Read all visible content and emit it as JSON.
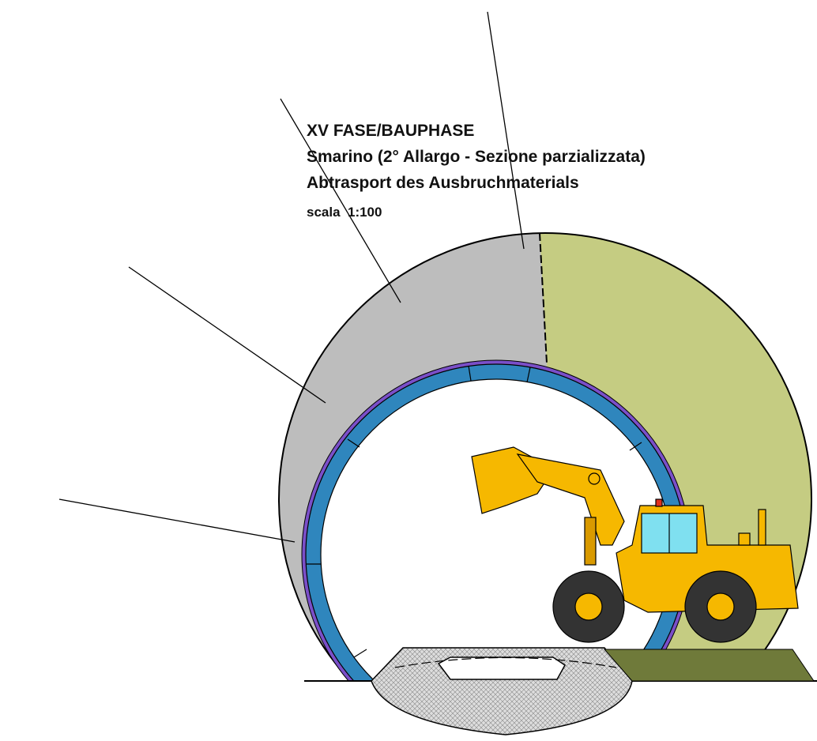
{
  "title": "XV FASE/BAUPHASE",
  "subtitle_it": "Smarino (2° Allargo - Sezione parzializzata)",
  "subtitle_de": "Abtrasport des Ausbruchmaterials",
  "scale": "scala  1:100"
}
